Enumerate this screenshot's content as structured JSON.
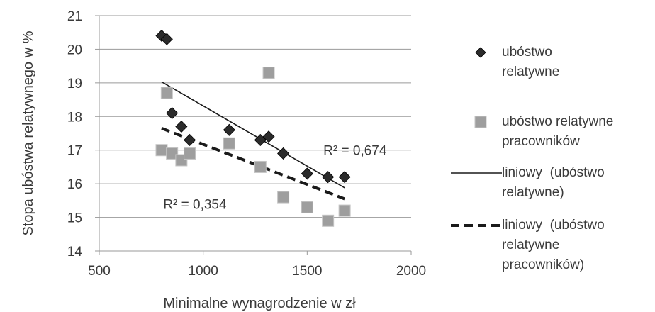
{
  "chart_data": {
    "type": "scatter",
    "xlabel": "Minimalne wynagrodzenie  w zł",
    "ylabel": "Stopa ubóstwa relatywnego w %",
    "xlim": [
      500,
      2000
    ],
    "ylim": [
      14,
      21
    ],
    "x_ticks": [
      "500",
      "1000",
      "1500",
      "2000"
    ],
    "y_ticks": [
      "14",
      "15",
      "16",
      "17",
      "18",
      "19",
      "20",
      "21"
    ],
    "grid": "horizontal",
    "legend_position": "right",
    "series": [
      {
        "name": "ubóstwo relatywne",
        "marker": "diamond",
        "color": "#2b2b2b",
        "points": [
          {
            "x": 800,
            "y": 20.4
          },
          {
            "x": 825,
            "y": 20.3
          },
          {
            "x": 850,
            "y": 18.1
          },
          {
            "x": 895,
            "y": 17.7
          },
          {
            "x": 935,
            "y": 17.3
          },
          {
            "x": 1125,
            "y": 17.6
          },
          {
            "x": 1275,
            "y": 17.3
          },
          {
            "x": 1315,
            "y": 17.4
          },
          {
            "x": 1385,
            "y": 16.9
          },
          {
            "x": 1500,
            "y": 16.3
          },
          {
            "x": 1600,
            "y": 16.2
          },
          {
            "x": 1680,
            "y": 16.2
          }
        ]
      },
      {
        "name": "ubóstwo relatywne pracowników",
        "marker": "square",
        "color": "#9e9e9e",
        "points": [
          {
            "x": 800,
            "y": 17.0
          },
          {
            "x": 825,
            "y": 18.7
          },
          {
            "x": 850,
            "y": 16.9
          },
          {
            "x": 895,
            "y": 16.7
          },
          {
            "x": 935,
            "y": 16.9
          },
          {
            "x": 1125,
            "y": 17.2
          },
          {
            "x": 1275,
            "y": 16.5
          },
          {
            "x": 1315,
            "y": 19.3
          },
          {
            "x": 1385,
            "y": 15.6
          },
          {
            "x": 1500,
            "y": 15.3
          },
          {
            "x": 1600,
            "y": 14.9
          },
          {
            "x": 1680,
            "y": 15.2
          }
        ]
      }
    ],
    "trendlines": [
      {
        "name": "liniowy (ubóstwo relatywne)",
        "style": "solid",
        "color": "#1a1a1a",
        "x": [
          800,
          1680
        ],
        "y": [
          19.03,
          15.88
        ],
        "r2_label": "R² = 0,674",
        "r2_anchor": {
          "x": 1730,
          "y": 17.0
        }
      },
      {
        "name": "liniowy (ubóstwo relatywne pracowników)",
        "style": "dashed",
        "color": "#1a1a1a",
        "x": [
          800,
          1680
        ],
        "y": [
          17.65,
          15.55
        ],
        "r2_label": "R² = 0,354",
        "r2_anchor": {
          "x": 960,
          "y": 15.4
        }
      }
    ]
  },
  "legend": [
    {
      "lines": [
        "ubóstwo",
        "relatywne"
      ],
      "symbol": "diamond"
    },
    {
      "lines": [
        "ubóstwo relatywne",
        "pracowników"
      ],
      "symbol": "square"
    },
    {
      "lines": [
        "liniowy  (ubóstwo",
        "relatywne)"
      ],
      "symbol": "solid-line"
    },
    {
      "lines": [
        "liniowy  (ubóstwo",
        "relatywne",
        "pracowników)"
      ],
      "symbol": "dashed-line"
    }
  ]
}
